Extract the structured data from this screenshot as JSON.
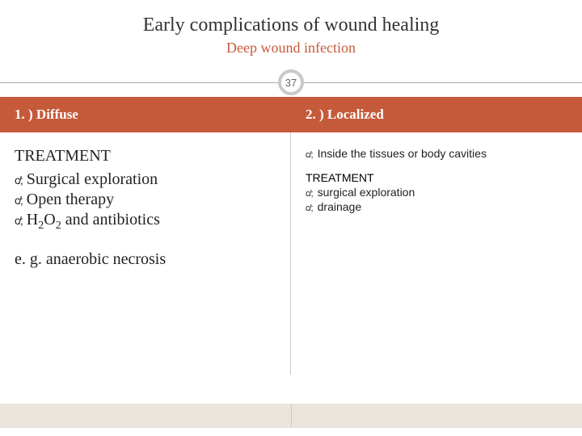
{
  "title": "Early complications of wound healing",
  "subtitle": "Deep wound infection",
  "page_number": "37",
  "colors": {
    "accent": "#c55a3a",
    "circle_border": "#c9c9c9",
    "bottom_bar": "#e9e5dc",
    "divider": "#aaaaaa"
  },
  "left": {
    "header": "1. ) Diffuse",
    "treatment_heading": "TREATMENT",
    "items": [
      "Surgical exploration",
      "Open therapy",
      "H2O2 and antibiotics"
    ],
    "example": "e. g. anaerobic necrosis"
  },
  "right": {
    "header": "2. ) Localized",
    "top_items": [
      "Inside the tissues or body cavities"
    ],
    "treatment_heading": "TREATMENT",
    "items": [
      "surgical exploration",
      "drainage"
    ]
  }
}
